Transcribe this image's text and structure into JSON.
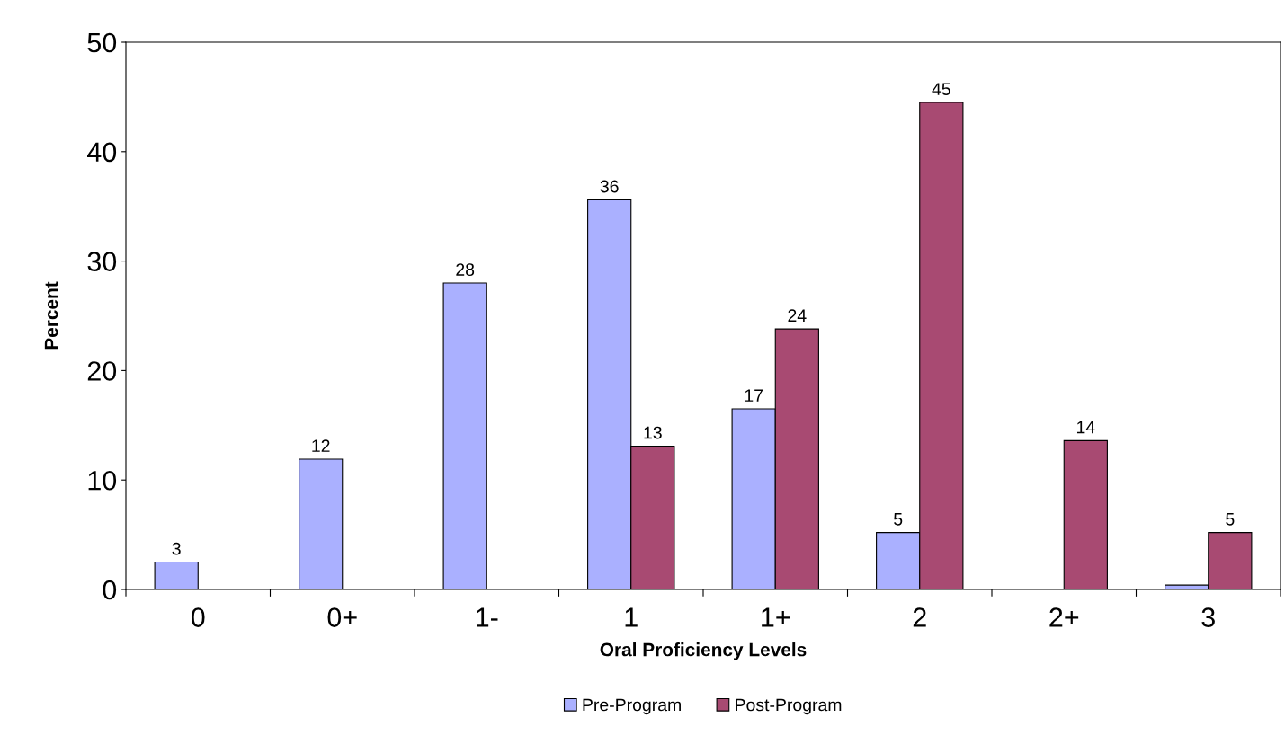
{
  "chart_data": {
    "type": "bar",
    "xlabel": "Oral Proficiency Levels",
    "ylabel": "Percent",
    "categories": [
      "0",
      "0+",
      "1-",
      "1",
      "1+",
      "2",
      "2+",
      "3"
    ],
    "series": [
      {
        "name": "Pre-Program",
        "color": "#aab0ff",
        "values": [
          2.5,
          11.9,
          28.0,
          35.6,
          16.5,
          5.2,
          null,
          0.4
        ],
        "value_labels": [
          "3",
          "12",
          "28",
          "36",
          "17",
          "5",
          null,
          null
        ]
      },
      {
        "name": "Post-Program",
        "color": "#a84a72",
        "values": [
          null,
          null,
          null,
          13.1,
          23.8,
          44.5,
          13.6,
          5.2
        ],
        "value_labels": [
          null,
          null,
          null,
          "13",
          "24",
          "45",
          "14",
          "5"
        ]
      }
    ],
    "ylim": [
      0,
      50
    ],
    "yticks": [
      0,
      10,
      20,
      30,
      40,
      50
    ],
    "grid": false,
    "legend": "bottom"
  }
}
